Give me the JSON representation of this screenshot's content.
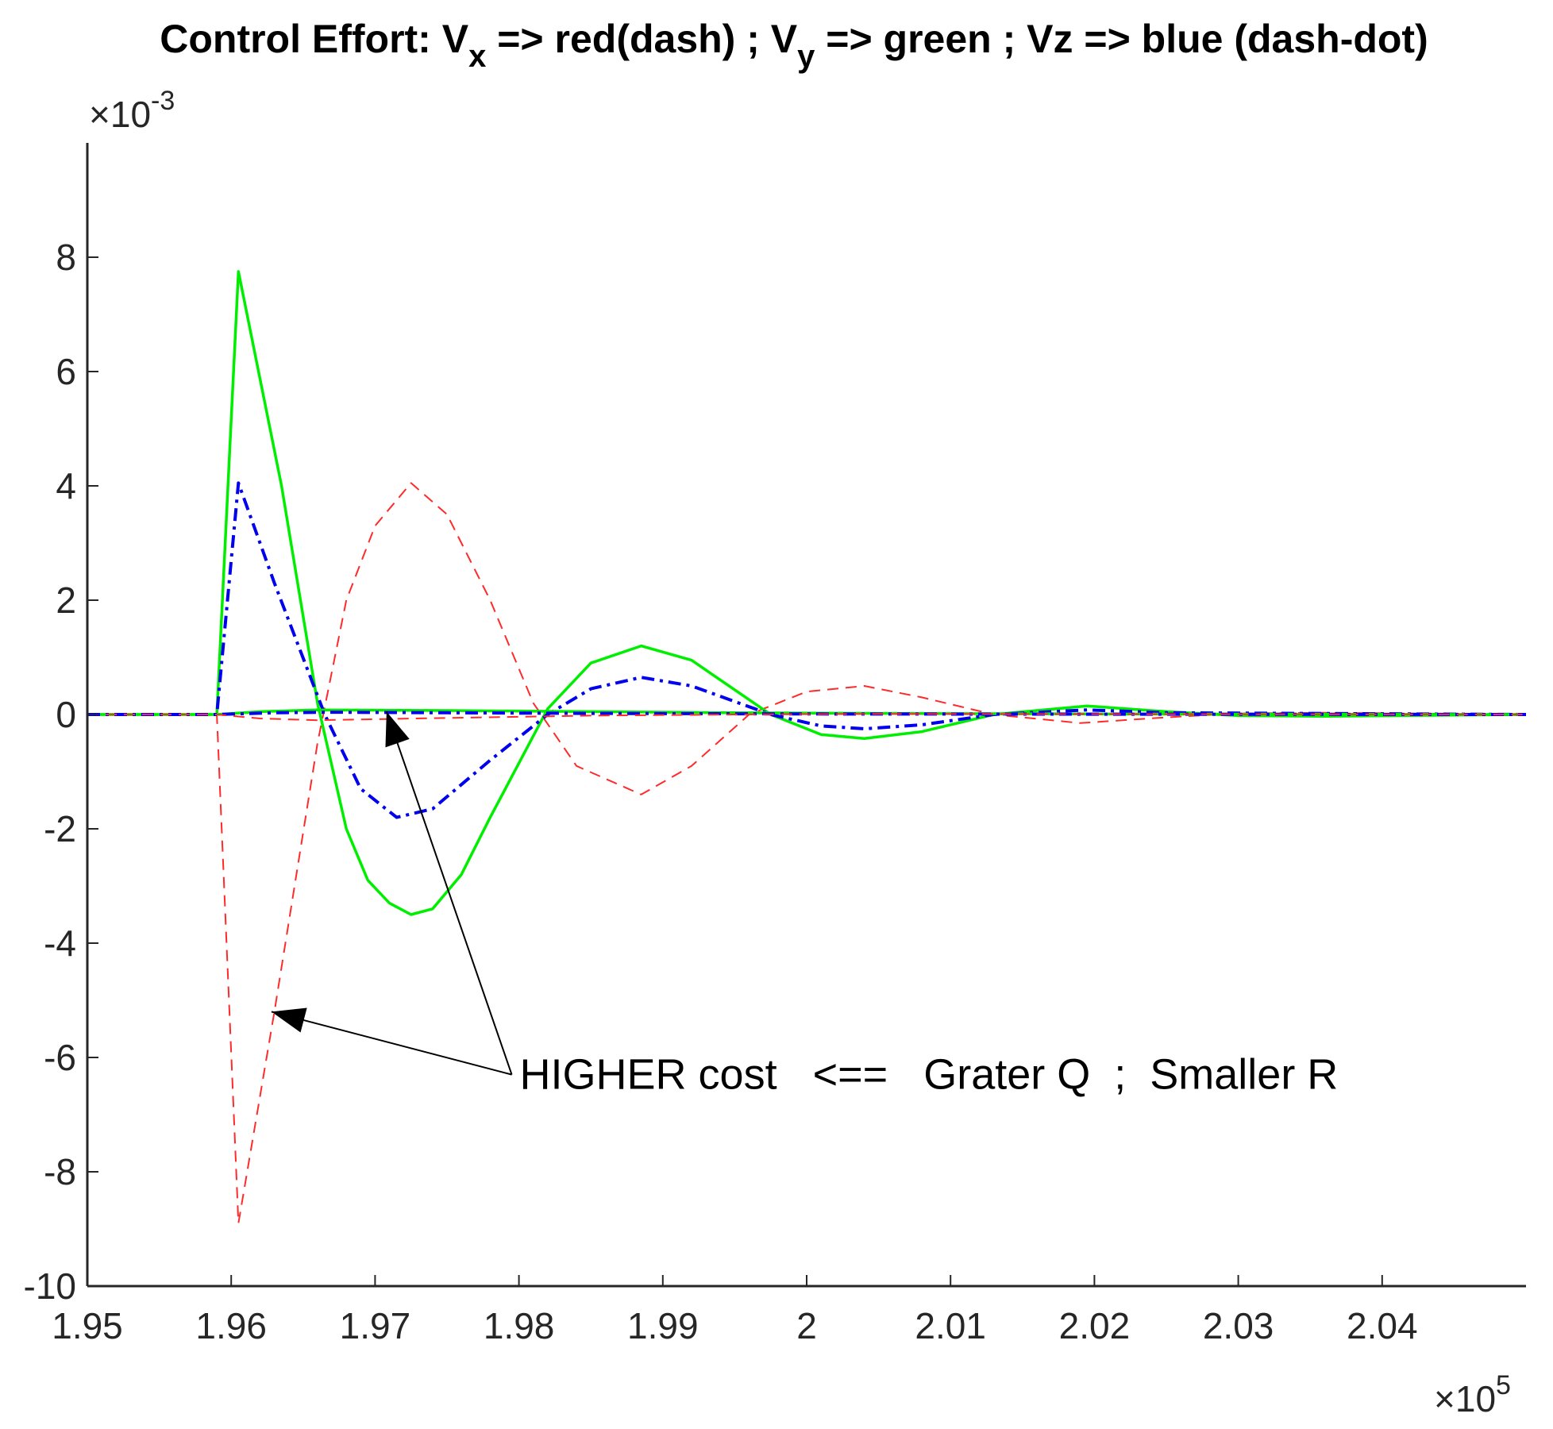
{
  "chart_data": {
    "type": "line",
    "title": {
      "prefix": "Control Effort:  V",
      "sub_x": "x",
      "mid1": " => red(dash) ;  V",
      "sub_y": "y",
      "suffix": " => green ; Vz => blue (dash-dot)"
    },
    "xlabel": "",
    "ylabel": "",
    "x_exponent": "×10",
    "x_exponent_power": "5",
    "y_exponent": "×10",
    "y_exponent_power": "-3",
    "xlim": [
      1.95,
      2.05
    ],
    "ylim": [
      -10,
      10
    ],
    "x_ticks": [
      1.95,
      1.96,
      1.97,
      1.98,
      1.99,
      2.0,
      2.01,
      2.02,
      2.03,
      2.04
    ],
    "x_tick_labels": [
      "1.95",
      "1.96",
      "1.97",
      "1.98",
      "1.99",
      "2",
      "2.01",
      "2.02",
      "2.03",
      "2.04"
    ],
    "y_ticks": [
      -10,
      -8,
      -6,
      -4,
      -2,
      0,
      2,
      4,
      6,
      8
    ],
    "y_tick_labels": [
      "-10",
      "-8",
      "-6",
      "-4",
      "-2",
      "0",
      "2",
      "4",
      "6",
      "8"
    ],
    "grid": false,
    "legend": "none",
    "series": [
      {
        "color": "#ff2a2a",
        "style": "dash",
        "points": [
          [
            1.95,
            0
          ],
          [
            1.959,
            0
          ],
          [
            1.9605,
            -8.9
          ],
          [
            1.963,
            -5.2
          ],
          [
            1.966,
            -0.5
          ],
          [
            1.968,
            2.0
          ],
          [
            1.97,
            3.3
          ],
          [
            1.9725,
            4.05
          ],
          [
            1.975,
            3.5
          ],
          [
            1.978,
            2.0
          ],
          [
            1.981,
            0.2
          ],
          [
            1.984,
            -0.9
          ],
          [
            1.9885,
            -1.4
          ],
          [
            1.992,
            -0.9
          ],
          [
            1.996,
            0.0
          ],
          [
            2.0,
            0.4
          ],
          [
            2.004,
            0.5
          ],
          [
            2.008,
            0.3
          ],
          [
            2.013,
            0.0
          ],
          [
            2.019,
            -0.15
          ],
          [
            2.025,
            -0.05
          ],
          [
            2.03,
            0.02
          ],
          [
            2.036,
            0.03
          ],
          [
            2.05,
            0
          ]
        ]
      },
      {
        "color": "#00ee00",
        "style": "solid",
        "points": [
          [
            1.95,
            0
          ],
          [
            1.959,
            0
          ],
          [
            1.9605,
            7.75
          ],
          [
            1.9635,
            4.0
          ],
          [
            1.966,
            0.2
          ],
          [
            1.968,
            -2.0
          ],
          [
            1.9695,
            -2.9
          ],
          [
            1.971,
            -3.3
          ],
          [
            1.9725,
            -3.5
          ],
          [
            1.974,
            -3.4
          ],
          [
            1.976,
            -2.8
          ],
          [
            1.978,
            -1.8
          ],
          [
            1.982,
            0.1
          ],
          [
            1.985,
            0.9
          ],
          [
            1.9885,
            1.2
          ],
          [
            1.992,
            0.95
          ],
          [
            1.9975,
            0.0
          ],
          [
            2.001,
            -0.35
          ],
          [
            2.004,
            -0.42
          ],
          [
            2.008,
            -0.3
          ],
          [
            2.013,
            0.0
          ],
          [
            2.0195,
            0.15
          ],
          [
            2.025,
            0.05
          ],
          [
            2.03,
            -0.02
          ],
          [
            2.036,
            -0.03
          ],
          [
            2.05,
            0
          ]
        ]
      },
      {
        "color": "#0000ee",
        "style": "dash-dot",
        "points": [
          [
            1.95,
            0
          ],
          [
            1.959,
            0
          ],
          [
            1.9605,
            4.05
          ],
          [
            1.963,
            2.3
          ],
          [
            1.9665,
            0.0
          ],
          [
            1.969,
            -1.3
          ],
          [
            1.9715,
            -1.8
          ],
          [
            1.974,
            -1.65
          ],
          [
            1.978,
            -0.8
          ],
          [
            1.982,
            0.0
          ],
          [
            1.985,
            0.45
          ],
          [
            1.9885,
            0.65
          ],
          [
            1.992,
            0.5
          ],
          [
            1.9975,
            0.0
          ],
          [
            2.001,
            -0.2
          ],
          [
            2.004,
            -0.25
          ],
          [
            2.008,
            -0.18
          ],
          [
            2.013,
            0.0
          ],
          [
            2.0195,
            0.08
          ],
          [
            2.025,
            0.03
          ],
          [
            2.05,
            0
          ]
        ]
      },
      {
        "color": "#00ee00",
        "style": "solid",
        "points": [
          [
            1.95,
            0
          ],
          [
            1.959,
            0
          ],
          [
            1.962,
            0.05
          ],
          [
            1.966,
            0.08
          ],
          [
            1.975,
            0.07
          ],
          [
            1.985,
            0.05
          ],
          [
            1.995,
            0.03
          ],
          [
            2.005,
            0.02
          ],
          [
            2.02,
            0.01
          ],
          [
            2.05,
            0
          ]
        ]
      },
      {
        "color": "#0000ee",
        "style": "dash-dot",
        "points": [
          [
            1.95,
            0
          ],
          [
            1.959,
            0
          ],
          [
            1.963,
            0.03
          ],
          [
            1.967,
            0.04
          ],
          [
            1.975,
            0.03
          ],
          [
            1.985,
            0.02
          ],
          [
            2.0,
            0.01
          ],
          [
            2.05,
            0
          ]
        ]
      },
      {
        "color": "#ff2a2a",
        "style": "dash",
        "points": [
          [
            1.95,
            0
          ],
          [
            1.959,
            0
          ],
          [
            1.962,
            -0.07
          ],
          [
            1.966,
            -0.1
          ],
          [
            1.975,
            -0.06
          ],
          [
            1.985,
            -0.02
          ],
          [
            1.995,
            0.0
          ],
          [
            2.005,
            0.01
          ],
          [
            2.05,
            0
          ]
        ]
      }
    ],
    "annotation": {
      "text": "HIGHER cost   <==   Grater Q  ;  Smaller R",
      "anchor": [
        1.9795,
        -6.3
      ],
      "arrows": [
        {
          "to": [
            1.9628,
            -5.2
          ]
        },
        {
          "to": [
            1.9708,
            0.05
          ]
        }
      ]
    }
  }
}
